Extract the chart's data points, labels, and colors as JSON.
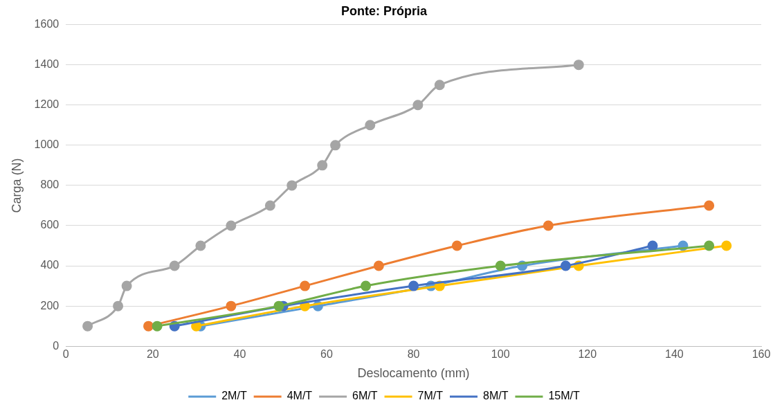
{
  "chart_data": {
    "type": "line",
    "title": "Ponte: Própria",
    "xlabel": "Deslocamento (mm)",
    "ylabel": "Carga (N)",
    "xlim": [
      0,
      160
    ],
    "xticks": [
      0,
      20,
      40,
      60,
      80,
      100,
      120,
      140,
      160
    ],
    "ylim": [
      0,
      1600
    ],
    "yticks": [
      0,
      200,
      400,
      600,
      800,
      1000,
      1200,
      1400,
      1600
    ],
    "grid": "y",
    "legend": "bottom",
    "marker": "circle",
    "line_style": "solid",
    "series": [
      {
        "name": "2M/T",
        "color": "#5b9bd5",
        "x": [
          31,
          58,
          84,
          105,
          142
        ],
        "values": [
          100,
          200,
          300,
          400,
          500
        ]
      },
      {
        "name": "4M/T",
        "color": "#ed7d31",
        "x": [
          19,
          38,
          55,
          72,
          90,
          111,
          148
        ],
        "values": [
          100,
          200,
          300,
          400,
          500,
          600,
          700
        ]
      },
      {
        "name": "6M/T",
        "color": "#a5a5a5",
        "x": [
          5,
          12,
          14,
          25,
          31,
          38,
          47,
          52,
          59,
          62,
          70,
          81,
          86,
          118
        ],
        "values": [
          100,
          200,
          300,
          400,
          500,
          600,
          700,
          800,
          900,
          1000,
          1100,
          1200,
          1300,
          1400
        ]
      },
      {
        "name": "7M/T",
        "color": "#ffc000",
        "x": [
          30,
          55,
          86,
          118,
          152
        ],
        "values": [
          100,
          200,
          300,
          400,
          500
        ]
      },
      {
        "name": "8M/T",
        "color": "#4472c4",
        "x": [
          25,
          50,
          80,
          115,
          135
        ],
        "values": [
          100,
          200,
          300,
          400,
          500
        ]
      },
      {
        "name": "15M/T",
        "color": "#70ad47",
        "x": [
          21,
          49,
          69,
          100,
          148
        ],
        "values": [
          100,
          200,
          300,
          400,
          500
        ]
      }
    ]
  }
}
